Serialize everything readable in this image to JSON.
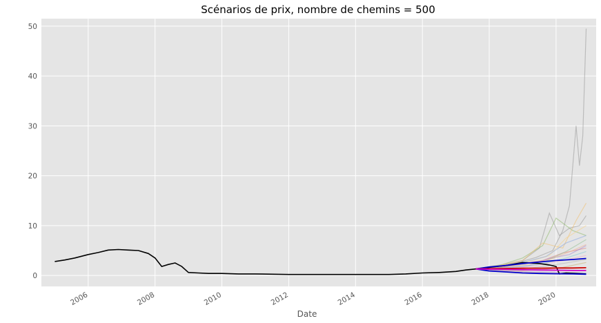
{
  "chart_data": {
    "type": "line",
    "title": "Scénarios de prix, nombre de chemins = 500",
    "xlabel": "Date",
    "ylabel": "",
    "xlim": [
      2004.6,
      2021.2
    ],
    "ylim": [
      -2.2,
      51.5
    ],
    "x_ticks": [
      2006,
      2008,
      2010,
      2012,
      2014,
      2016,
      2018,
      2020
    ],
    "x_tick_labels": [
      "2006",
      "2008",
      "2010",
      "2012",
      "2014",
      "2016",
      "2018",
      "2020"
    ],
    "y_ticks": [
      0,
      10,
      20,
      30,
      40,
      50
    ],
    "y_tick_labels": [
      "0",
      "10",
      "20",
      "30",
      "40",
      "50"
    ],
    "grid": true,
    "background": "#e5e5e5",
    "series": [
      {
        "color": "#000000",
        "style": "historical",
        "x": [
          2005.0,
          2005.3,
          2005.6,
          2006.0,
          2006.3,
          2006.6,
          2006.9,
          2007.2,
          2007.5,
          2007.8,
          2008.0,
          2008.2,
          2008.4,
          2008.6,
          2008.8,
          2009.0,
          2009.3,
          2009.6,
          2010.0,
          2010.5,
          2011.0,
          2012.0,
          2013.0,
          2014.0,
          2015.0,
          2015.5,
          2016.0,
          2016.5,
          2017.0,
          2017.3,
          2017.6
        ],
        "y": [
          2.8,
          3.1,
          3.5,
          4.2,
          4.6,
          5.1,
          5.2,
          5.1,
          5.0,
          4.4,
          3.5,
          1.8,
          2.2,
          2.5,
          1.8,
          0.6,
          0.5,
          0.4,
          0.4,
          0.3,
          0.3,
          0.2,
          0.2,
          0.2,
          0.2,
          0.3,
          0.5,
          0.6,
          0.8,
          1.1,
          1.3
        ]
      },
      {
        "color": "#000000",
        "style": "path",
        "x": [
          2017.6,
          2018.0,
          2018.5,
          2019.0,
          2019.5,
          2019.8,
          2020.0,
          2020.1,
          2020.3,
          2020.6,
          2020.9
        ],
        "y": [
          1.3,
          1.6,
          2.0,
          2.6,
          2.4,
          2.1,
          1.8,
          0.3,
          0.5,
          0.4,
          0.3
        ]
      },
      {
        "color": "#0000cc",
        "style": "upper-band",
        "x": [
          2017.6,
          2018.0,
          2018.5,
          2019.0,
          2019.5,
          2020.0,
          2020.5,
          2020.9
        ],
        "y": [
          1.3,
          1.7,
          2.0,
          2.4,
          2.7,
          3.0,
          3.2,
          3.4
        ]
      },
      {
        "color": "#0000cc",
        "style": "lower-band",
        "x": [
          2017.6,
          2018.0,
          2018.5,
          2019.0,
          2019.5,
          2020.0,
          2020.5,
          2020.9
        ],
        "y": [
          1.3,
          0.9,
          0.7,
          0.5,
          0.4,
          0.35,
          0.3,
          0.25
        ]
      },
      {
        "color": "#cc0000",
        "style": "median",
        "x": [
          2017.6,
          2018.0,
          2018.5,
          2019.0,
          2019.5,
          2020.0,
          2020.5,
          2020.9
        ],
        "y": [
          1.3,
          1.35,
          1.4,
          1.45,
          1.45,
          1.5,
          1.5,
          1.55
        ]
      },
      {
        "color": "#cc00cc",
        "style": "mean",
        "x": [
          2017.6,
          2018.0,
          2018.5,
          2019.0,
          2019.5,
          2020.0,
          2020.5,
          2020.9
        ],
        "y": [
          1.3,
          1.25,
          1.2,
          1.15,
          1.1,
          1.05,
          1.0,
          1.0
        ]
      }
    ],
    "simulated_paths": [
      {
        "color": "#999999",
        "x": [
          2017.6,
          2018.2,
          2018.8,
          2019.4,
          2019.9,
          2020.2,
          2020.4,
          2020.6,
          2020.7,
          2020.8,
          2020.9
        ],
        "y": [
          1.3,
          1.8,
          2.5,
          3.6,
          5.0,
          9.0,
          14.0,
          30.0,
          22.0,
          28.0,
          49.5
        ]
      },
      {
        "color": "#999999",
        "x": [
          2017.6,
          2018.3,
          2019.0,
          2019.5,
          2019.8,
          2020.1,
          2020.4,
          2020.7,
          2020.9
        ],
        "y": [
          1.3,
          2.0,
          3.0,
          5.5,
          12.5,
          8.0,
          9.5,
          10.0,
          12.0
        ]
      },
      {
        "color": "#8fb96b",
        "x": [
          2017.6,
          2018.4,
          2019.0,
          2019.6,
          2020.0,
          2020.5,
          2020.9
        ],
        "y": [
          1.3,
          2.2,
          3.5,
          6.0,
          11.5,
          9.0,
          8.0
        ]
      },
      {
        "color": "#f0c070",
        "x": [
          2017.6,
          2018.3,
          2019.0,
          2019.6,
          2020.2,
          2020.6,
          2020.9
        ],
        "y": [
          1.3,
          2.0,
          3.0,
          6.5,
          5.5,
          11.0,
          14.5
        ]
      },
      {
        "color": "#f5d28a",
        "x": [
          2017.6,
          2018.5,
          2019.2,
          2019.8,
          2020.3,
          2020.9
        ],
        "y": [
          1.3,
          1.9,
          2.8,
          4.0,
          7.5,
          10.0
        ]
      },
      {
        "color": "#8aa8e0",
        "x": [
          2017.6,
          2018.4,
          2019.0,
          2019.7,
          2020.3,
          2020.9
        ],
        "y": [
          1.3,
          1.7,
          2.6,
          3.8,
          6.5,
          8.0
        ]
      },
      {
        "color": "#e07a7a",
        "x": [
          2017.6,
          2018.2,
          2018.9,
          2019.6,
          2020.2,
          2020.9
        ],
        "y": [
          1.3,
          1.5,
          2.3,
          3.0,
          4.5,
          5.5
        ]
      },
      {
        "color": "#a58bd0",
        "x": [
          2017.6,
          2018.5,
          2019.2,
          2019.8,
          2020.4,
          2020.9
        ],
        "y": [
          1.3,
          1.6,
          2.0,
          3.4,
          4.2,
          6.0
        ]
      },
      {
        "color": "#7fc4d4",
        "x": [
          2017.6,
          2018.4,
          2019.1,
          2019.7,
          2020.3,
          2020.9
        ],
        "y": [
          1.3,
          1.4,
          1.9,
          2.5,
          3.5,
          4.8
        ]
      },
      {
        "color": "#f0a8c8",
        "x": [
          2017.6,
          2018.3,
          2019.0,
          2019.6,
          2020.2,
          2020.9
        ],
        "y": [
          1.3,
          1.3,
          1.6,
          2.2,
          3.0,
          4.0
        ]
      },
      {
        "color": "#b0b0b0",
        "x": [
          2017.6,
          2018.4,
          2019.0,
          2019.6,
          2020.2,
          2020.9
        ],
        "y": [
          1.3,
          1.2,
          1.3,
          1.8,
          2.4,
          3.2
        ]
      },
      {
        "color": "#c8b070",
        "x": [
          2017.6,
          2018.3,
          2019.0,
          2019.6,
          2020.2,
          2020.9
        ],
        "y": [
          1.3,
          1.1,
          1.0,
          1.2,
          1.6,
          2.6
        ]
      },
      {
        "color": "#90c090",
        "x": [
          2017.6,
          2018.4,
          2019.1,
          2019.7,
          2020.3,
          2020.9
        ],
        "y": [
          1.3,
          1.6,
          2.4,
          2.9,
          4.8,
          7.2
        ]
      },
      {
        "color": "#f0b090",
        "x": [
          2017.6,
          2018.5,
          2019.2,
          2019.9,
          2020.5,
          2020.9
        ],
        "y": [
          1.3,
          1.8,
          2.2,
          3.4,
          5.0,
          6.2
        ]
      },
      {
        "color": "#a0a0d8",
        "x": [
          2017.6,
          2018.3,
          2019.0,
          2019.6,
          2020.3,
          2020.9
        ],
        "y": [
          1.3,
          1.0,
          0.8,
          0.7,
          0.6,
          0.5
        ]
      },
      {
        "color": "#d8a0a0",
        "x": [
          2017.6,
          2018.3,
          2019.0,
          2019.6,
          2020.3,
          2020.9
        ],
        "y": [
          1.3,
          0.9,
          0.7,
          0.55,
          0.45,
          0.35
        ]
      }
    ]
  }
}
